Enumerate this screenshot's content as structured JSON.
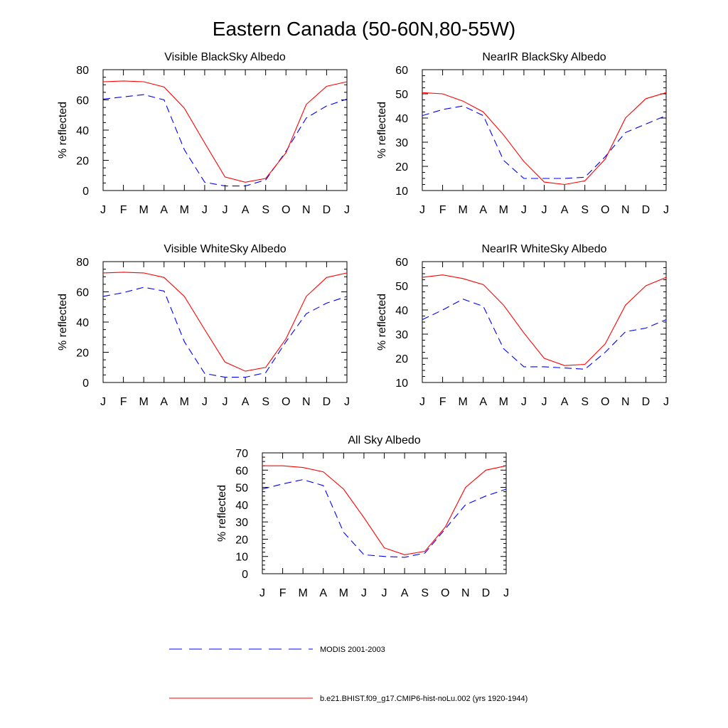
{
  "figure": {
    "title": "Eastern Canada (50-60N,80-55W)"
  },
  "legend": {
    "entries": [
      {
        "label": "MODIS 2001-2003",
        "color": "#0000ff",
        "dashed": true
      },
      {
        "label": "b.e21.BHIST.f09_g17.CMIP6-hist-noLu.002 (yrs 1920-1944)",
        "color": "#ff0000",
        "dashed": false
      }
    ]
  },
  "chart_data": [
    {
      "type": "line",
      "title": "Visible BlackSky Albedo",
      "ylabel": "% reflected",
      "categories": [
        "J",
        "F",
        "M",
        "A",
        "M",
        "J",
        "J",
        "A",
        "S",
        "O",
        "N",
        "D",
        "J"
      ],
      "ylim": [
        0,
        80
      ],
      "yticks": [
        0,
        20,
        40,
        60,
        80
      ],
      "series": [
        {
          "values": [
            60.5,
            62,
            63.5,
            60,
            27,
            5.5,
            3,
            3,
            7,
            26,
            48,
            56,
            60.5
          ],
          "color": "#0000ff",
          "dashed": true
        },
        {
          "values": [
            72,
            72.5,
            72,
            68.5,
            54.5,
            31.5,
            9,
            5.5,
            8,
            25,
            57,
            69,
            72
          ],
          "color": "#ff0000",
          "dashed": false
        }
      ]
    },
    {
      "type": "line",
      "title": "NearIR BlackSky Albedo",
      "ylabel": "% reflected",
      "categories": [
        "J",
        "F",
        "M",
        "A",
        "M",
        "J",
        "J",
        "A",
        "S",
        "O",
        "N",
        "D",
        "J"
      ],
      "ylim": [
        10,
        60
      ],
      "yticks": [
        10,
        20,
        30,
        40,
        50,
        60
      ],
      "series": [
        {
          "values": [
            41,
            43.5,
            45,
            41,
            22.5,
            15,
            15,
            15,
            15.5,
            24,
            34,
            37.5,
            41
          ],
          "color": "#0000ff",
          "dashed": true
        },
        {
          "values": [
            50.5,
            50,
            47,
            42.5,
            33,
            22,
            13.5,
            12.5,
            14,
            23,
            40,
            48,
            50.5
          ],
          "color": "#ff0000",
          "dashed": false
        }
      ]
    },
    {
      "type": "line",
      "title": "Visible WhiteSky Albedo",
      "ylabel": "% reflected",
      "categories": [
        "J",
        "F",
        "M",
        "A",
        "M",
        "J",
        "J",
        "A",
        "S",
        "O",
        "N",
        "D",
        "J"
      ],
      "ylim": [
        0,
        80
      ],
      "yticks": [
        0,
        20,
        40,
        60,
        80
      ],
      "series": [
        {
          "values": [
            57,
            59.5,
            63,
            60.5,
            27,
            6,
            3.5,
            3.5,
            6.5,
            27,
            45.5,
            52.5,
            57
          ],
          "color": "#0000ff",
          "dashed": true
        },
        {
          "values": [
            72.5,
            73,
            72.5,
            69.5,
            57,
            35,
            13.5,
            7.5,
            10,
            29,
            57,
            69.5,
            72.5
          ],
          "color": "#ff0000",
          "dashed": false
        }
      ]
    },
    {
      "type": "line",
      "title": "NearIR WhiteSky Albedo",
      "ylabel": "% reflected",
      "categories": [
        "J",
        "F",
        "M",
        "A",
        "M",
        "J",
        "J",
        "A",
        "S",
        "O",
        "N",
        "D",
        "J"
      ],
      "ylim": [
        10,
        60
      ],
      "yticks": [
        10,
        20,
        30,
        40,
        50,
        60
      ],
      "series": [
        {
          "values": [
            36,
            40,
            44.5,
            41.5,
            24,
            16.5,
            16.5,
            16,
            15.5,
            22.5,
            31,
            32.5,
            36
          ],
          "color": "#0000ff",
          "dashed": true
        },
        {
          "values": [
            53.5,
            54.5,
            53,
            50.5,
            42,
            30.5,
            20,
            17,
            17.5,
            26,
            42,
            50,
            53.5
          ],
          "color": "#ff0000",
          "dashed": false
        }
      ]
    },
    {
      "type": "line",
      "title": "All Sky Albedo",
      "ylabel": "% reflected",
      "categories": [
        "J",
        "F",
        "M",
        "A",
        "M",
        "J",
        "J",
        "A",
        "S",
        "O",
        "N",
        "D",
        "J"
      ],
      "ylim": [
        0,
        70
      ],
      "yticks": [
        0,
        10,
        20,
        30,
        40,
        50,
        60,
        70
      ],
      "series": [
        {
          "values": [
            49,
            52,
            54.5,
            51,
            24,
            11,
            10,
            9.5,
            12,
            26,
            40,
            45,
            49
          ],
          "color": "#0000ff",
          "dashed": true
        },
        {
          "values": [
            62.5,
            62.5,
            61.5,
            59,
            49,
            32.5,
            15,
            11,
            13,
            27,
            50,
            60,
            62.5
          ],
          "color": "#ff0000",
          "dashed": false
        }
      ]
    }
  ]
}
